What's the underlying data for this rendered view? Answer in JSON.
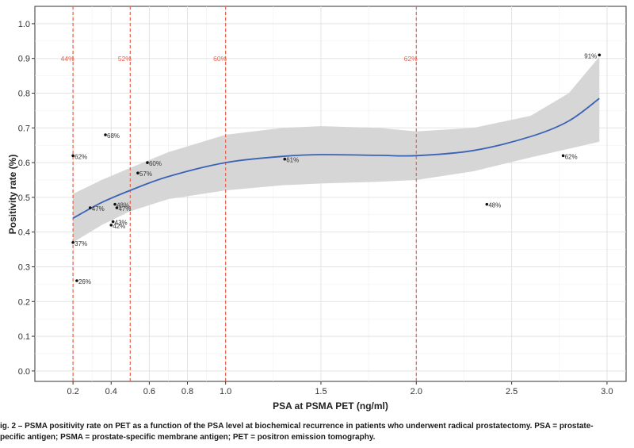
{
  "chart_data": {
    "type": "scatter",
    "xlabel": "PSA at PSMA PET (ng/ml)",
    "ylabel": "Positivity rate (%)",
    "xlim": [
      0.0,
      3.1
    ],
    "ylim": [
      -0.03,
      1.05
    ],
    "x_ticks": [
      "0.2",
      "0.4",
      "0.6",
      "0.8",
      "1.0",
      "1.5",
      "2.0",
      "2.5",
      "3.0"
    ],
    "y_ticks": [
      "0.0",
      "0.1",
      "0.2",
      "0.3",
      "0.4",
      "0.5",
      "0.6",
      "0.7",
      "0.8",
      "0.9",
      "1.0"
    ],
    "grid": true,
    "points": [
      {
        "x": 0.2,
        "y": 0.62,
        "label": "62%"
      },
      {
        "x": 0.2,
        "y": 0.37,
        "label": "37%"
      },
      {
        "x": 0.22,
        "y": 0.26,
        "label": "26%"
      },
      {
        "x": 0.29,
        "y": 0.47,
        "label": "47%"
      },
      {
        "x": 0.37,
        "y": 0.68,
        "label": "68%"
      },
      {
        "x": 0.4,
        "y": 0.42,
        "label": "42%"
      },
      {
        "x": 0.41,
        "y": 0.43,
        "label": "43%"
      },
      {
        "x": 0.42,
        "y": 0.48,
        "label": "48%"
      },
      {
        "x": 0.43,
        "y": 0.47,
        "label": "47%"
      },
      {
        "x": 0.54,
        "y": 0.57,
        "label": "57%"
      },
      {
        "x": 0.59,
        "y": 0.6,
        "label": "60%"
      },
      {
        "x": 1.31,
        "y": 0.61,
        "label": "61%"
      },
      {
        "x": 2.37,
        "y": 0.48,
        "label": "48%"
      },
      {
        "x": 2.77,
        "y": 0.62,
        "label": "62%"
      },
      {
        "x": 2.96,
        "y": 0.91,
        "label": "91%"
      }
    ],
    "reference_lines": [
      {
        "x": 0.2,
        "label": "44%"
      },
      {
        "x": 0.5,
        "label": "52%"
      },
      {
        "x": 1.0,
        "label": "60%"
      },
      {
        "x": 2.0,
        "label": "62%"
      }
    ],
    "smooth": {
      "x": [
        0.2,
        0.35,
        0.5,
        0.7,
        1.0,
        1.3,
        1.5,
        1.8,
        2.0,
        2.3,
        2.6,
        2.8,
        2.96
      ],
      "y": [
        0.44,
        0.485,
        0.52,
        0.56,
        0.6,
        0.618,
        0.623,
        0.621,
        0.62,
        0.635,
        0.675,
        0.72,
        0.785
      ],
      "lower": [
        0.37,
        0.42,
        0.46,
        0.495,
        0.52,
        0.535,
        0.54,
        0.545,
        0.55,
        0.575,
        0.615,
        0.64,
        0.66
      ],
      "upper": [
        0.51,
        0.55,
        0.585,
        0.63,
        0.68,
        0.7,
        0.705,
        0.7,
        0.69,
        0.7,
        0.735,
        0.8,
        0.905
      ]
    },
    "colors": {
      "smooth_line": "#3b63b5",
      "ribbon": "#d4d4d4",
      "reference": "#e8604a",
      "point": "#111111"
    }
  },
  "caption": {
    "line1": "ig. 2 – PSMA positivity rate on PET as a function of the PSA level at biochemical recurrence in patients who underwent radical prostatectomy. PSA = prostate-",
    "line2": "pecific antigen; PSMA = prostate-specific membrane antigen; PET = positron emission tomography."
  }
}
